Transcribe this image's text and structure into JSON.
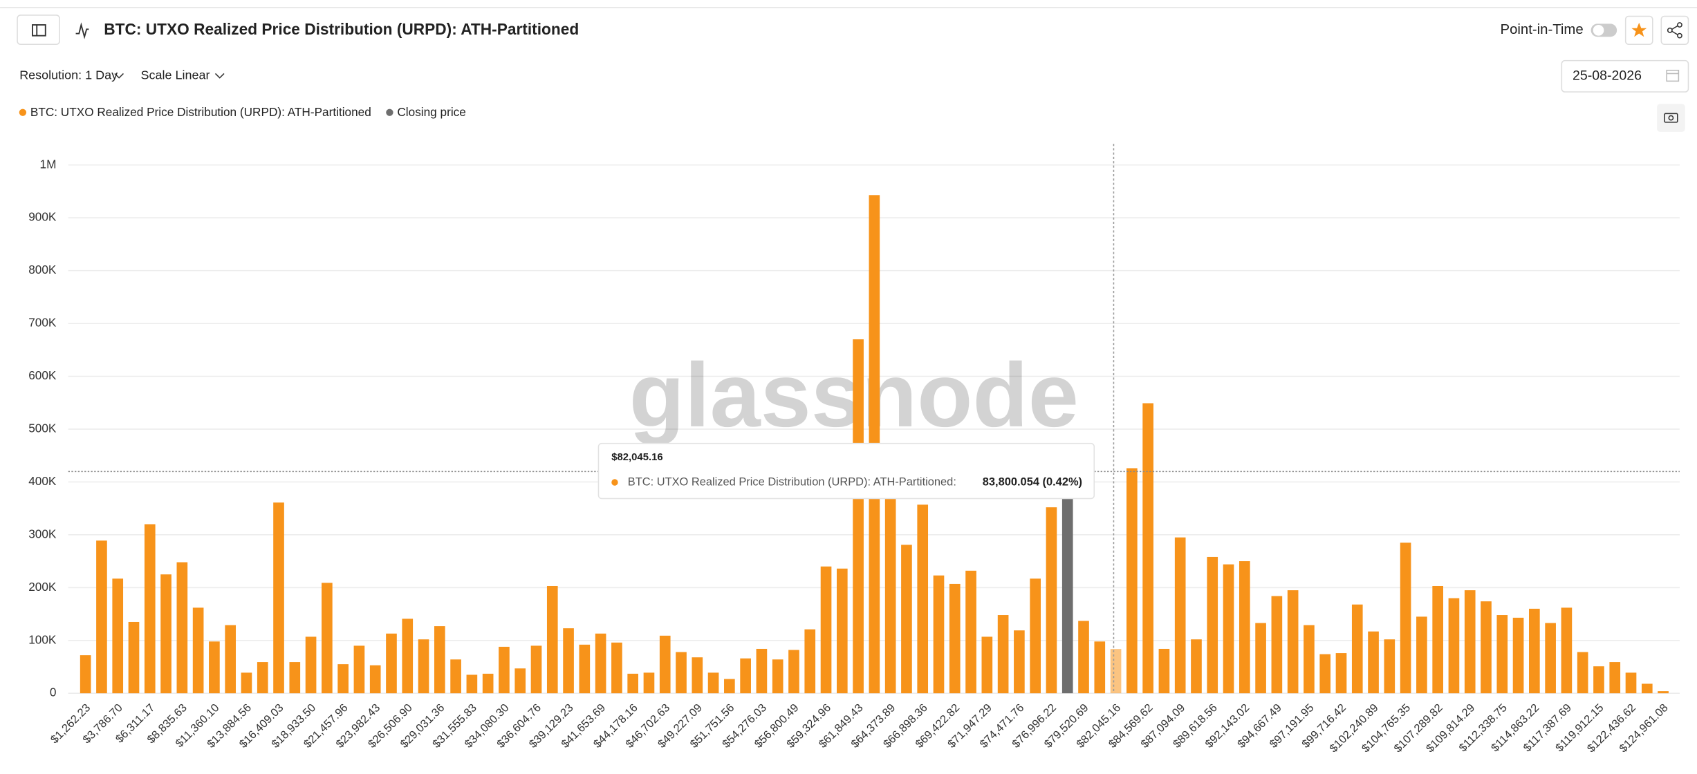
{
  "header": {
    "point_in_time": "Point-in-Time"
  },
  "controls": {
    "resolution": "Resolution: 1 Day",
    "scale": "Scale Linear",
    "date": "25-08-2026"
  },
  "watermark": "glassnode",
  "chart_data": {
    "type": "bar",
    "title": "BTC: UTXO Realized Price Distribution (URPD): ATH-Partitioned",
    "categories": [
      "$1,262.23",
      null,
      "$3,786.70",
      null,
      "$6,311.17",
      null,
      "$8,835.63",
      null,
      "$11,360.10",
      null,
      "$13,884.56",
      null,
      "$16,409.03",
      null,
      "$18,933.50",
      null,
      "$21,457.96",
      null,
      "$23,982.43",
      null,
      "$26,506.90",
      null,
      "$29,031.36",
      null,
      "$31,555.83",
      null,
      "$34,080.30",
      null,
      "$36,604.76",
      null,
      "$39,129.23",
      null,
      "$41,653.69",
      null,
      "$44,178.16",
      null,
      "$46,702.63",
      null,
      "$49,227.09",
      null,
      "$51,751.56",
      null,
      "$54,276.03",
      null,
      "$56,800.49",
      null,
      "$59,324.96",
      null,
      "$61,849.43",
      null,
      "$64,373.89",
      null,
      "$66,898.36",
      null,
      "$69,422.82",
      null,
      "$71,947.29",
      null,
      "$74,471.76",
      null,
      "$76,996.22",
      null,
      "$79,520.69",
      null,
      "$82,045.16",
      null,
      "$84,569.62",
      null,
      "$87,094.09",
      null,
      "$89,618.56",
      null,
      "$92,143.02",
      null,
      "$94,667.49",
      null,
      "$97,191.95",
      null,
      "$99,716.42",
      null,
      "$102,240.89",
      null,
      "$104,765.35",
      null,
      "$107,289.82",
      null,
      "$109,814.29",
      null,
      "$112,338.75",
      null,
      "$114,863.22",
      null,
      "$117,387.69",
      null,
      "$119,912.15",
      null,
      "$122,436.62",
      null,
      "$124,961.08"
    ],
    "series": [
      {
        "name": "BTC: UTXO Realized Price Distribution (URPD): ATH-Partitioned",
        "color": "#f7931a",
        "values": [
          72000,
          289000,
          217000,
          135000,
          320000,
          225000,
          248000,
          162000,
          98000,
          129000,
          39000,
          59000,
          361000,
          59000,
          107000,
          209000,
          55000,
          90000,
          53000,
          113000,
          141000,
          102000,
          127000,
          64000,
          35000,
          37000,
          88000,
          47000,
          90000,
          203000,
          123000,
          92000,
          113000,
          96000,
          37000,
          39000,
          109000,
          78000,
          68000,
          39000,
          27000,
          66000,
          84000,
          64000,
          82000,
          121000,
          240000,
          236000,
          670000,
          943000,
          420000,
          281000,
          357000,
          223000,
          207000,
          232000,
          107000,
          148000,
          119000,
          217000,
          352000,
          null,
          137000,
          98000,
          83800.054,
          426000,
          549000,
          84000,
          295000,
          102000,
          258000,
          244000,
          250000,
          133000,
          184000,
          195000,
          129000,
          74000,
          76000,
          168000,
          117000,
          102000,
          285000,
          145000,
          203000,
          180000,
          195000,
          174000,
          148000,
          143000,
          160000,
          133000,
          162000,
          78000,
          51000,
          59000,
          39000,
          18000,
          4000
        ],
        "value_labels": [
          null,
          null,
          null,
          null,
          null,
          null,
          null,
          null,
          null,
          null,
          null,
          null,
          null,
          null,
          null,
          null,
          null,
          null,
          null,
          null,
          null,
          null,
          null,
          null,
          null,
          null,
          null,
          null,
          null,
          null,
          null,
          null,
          null,
          null,
          null,
          null,
          null,
          null,
          null,
          null,
          null,
          null,
          null,
          null,
          null,
          null,
          null,
          null,
          null,
          null,
          null,
          null,
          null,
          null,
          null,
          null,
          null,
          null,
          null,
          null,
          null,
          null,
          null,
          null,
          "83,800.054 (0.42%)",
          null,
          null,
          null,
          null,
          null,
          null,
          null,
          null,
          null,
          null,
          null,
          null,
          null,
          null,
          null,
          null,
          null,
          null,
          null,
          null,
          null,
          null,
          null,
          null,
          null,
          null,
          null,
          null,
          null,
          null,
          null,
          null,
          null,
          null
        ]
      },
      {
        "name": "Closing price",
        "color": "#6e6e6e",
        "values": [
          null,
          null,
          null,
          null,
          null,
          null,
          null,
          null,
          null,
          null,
          null,
          null,
          null,
          null,
          null,
          null,
          null,
          null,
          null,
          null,
          null,
          null,
          null,
          null,
          null,
          null,
          null,
          null,
          null,
          null,
          null,
          null,
          null,
          null,
          null,
          null,
          null,
          null,
          null,
          null,
          null,
          null,
          null,
          null,
          null,
          null,
          null,
          null,
          null,
          null,
          null,
          null,
          null,
          null,
          null,
          null,
          null,
          null,
          null,
          null,
          null,
          420000,
          null,
          null,
          null,
          null,
          null,
          null,
          null,
          null,
          null,
          null,
          null,
          null,
          null,
          null,
          null,
          null,
          null,
          null,
          null,
          null,
          null,
          null,
          null,
          null,
          null,
          null,
          null,
          null,
          null,
          null,
          null,
          null,
          null,
          null,
          null,
          null,
          null
        ]
      }
    ],
    "tooltip_label": "BTC: UTXO Realized Price Distribution (URPD): ATH-Partitioned:",
    "ylim": [
      0,
      1040000
    ],
    "yticks": [
      0,
      {
        "value": 100000,
        "label": "100K"
      },
      {
        "value": 200000,
        "label": "200K"
      },
      {
        "value": 300000,
        "label": "300K"
      },
      {
        "value": 400000,
        "label": "400K"
      },
      {
        "value": 500000,
        "label": "500K"
      },
      {
        "value": 600000,
        "label": "600K"
      },
      {
        "value": 700000,
        "label": "700K"
      },
      {
        "value": 800000,
        "label": "800K"
      },
      {
        "value": 900000,
        "label": "900K"
      },
      {
        "value": 1000000,
        "label": "1M"
      }
    ],
    "grid": true
  }
}
